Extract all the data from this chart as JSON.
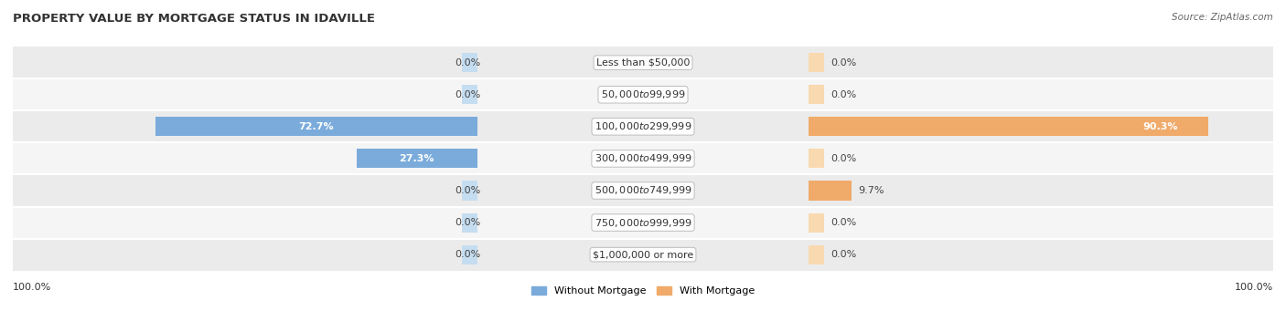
{
  "title": "PROPERTY VALUE BY MORTGAGE STATUS IN IDAVILLE",
  "source": "Source: ZipAtlas.com",
  "categories": [
    "Less than $50,000",
    "$50,000 to $99,999",
    "$100,000 to $299,999",
    "$300,000 to $499,999",
    "$500,000 to $749,999",
    "$750,000 to $999,999",
    "$1,000,000 or more"
  ],
  "without_mortgage": [
    0.0,
    0.0,
    72.7,
    27.3,
    0.0,
    0.0,
    0.0
  ],
  "with_mortgage": [
    0.0,
    0.0,
    90.3,
    0.0,
    9.7,
    0.0,
    0.0
  ],
  "color_without": "#7aabdb",
  "color_with": "#f0aa6a",
  "color_without_light": "#c5ddf0",
  "color_with_light": "#f9d9b0",
  "row_bg_even": "#ebebeb",
  "row_bg_odd": "#f5f5f5",
  "axis_label_left": "100.0%",
  "axis_label_right": "100.0%",
  "legend_without": "Without Mortgage",
  "legend_with": "With Mortgage",
  "figsize": [
    14.06,
    3.41
  ],
  "dpi": 100,
  "bar_max": 100.0,
  "stub_size": 3.5,
  "title_fontsize": 9.5,
  "label_fontsize": 8.0,
  "cat_fontsize": 8.0
}
